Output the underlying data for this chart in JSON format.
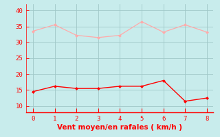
{
  "x": [
    0,
    1,
    2,
    3,
    4,
    5,
    6,
    7,
    8
  ],
  "y_rafales": [
    33.5,
    35.5,
    32.2,
    31.5,
    32.2,
    36.5,
    33.2,
    35.5,
    33.2
  ],
  "y_moyen": [
    14.5,
    16.2,
    15.5,
    15.5,
    16.2,
    16.2,
    18.0,
    11.5,
    12.5
  ],
  "color_rafales": "#ffaaaa",
  "color_moyen": "#ff0000",
  "bg_color": "#c8ecec",
  "grid_color": "#a0c8c8",
  "xlabel": "Vent moyen/en rafales ( km/h )",
  "xlabel_color": "#ff0000",
  "ylim": [
    8,
    42
  ],
  "xlim": [
    -0.3,
    8.3
  ],
  "yticks": [
    10,
    15,
    20,
    25,
    30,
    35,
    40
  ],
  "xticks": [
    0,
    1,
    2,
    3,
    4,
    5,
    6,
    7,
    8
  ],
  "tick_color": "#ff0000",
  "axis_color": "#ff0000",
  "label_fontsize": 7.5,
  "tick_fontsize": 6.5
}
